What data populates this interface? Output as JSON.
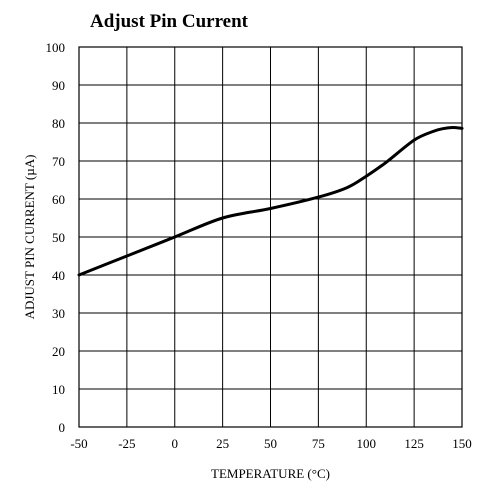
{
  "chart_data": {
    "type": "line",
    "title": "Adjust Pin Current",
    "xlabel": "TEMPERATURE (°C)",
    "ylabel": "ADJUST PIN CURRENT (µA)",
    "xlim": [
      -50,
      150
    ],
    "ylim": [
      0,
      100
    ],
    "xticks": [
      -50,
      -25,
      0,
      25,
      50,
      75,
      100,
      125,
      150
    ],
    "yticks": [
      0,
      10,
      20,
      30,
      40,
      50,
      60,
      70,
      80,
      90,
      100
    ],
    "grid": true,
    "series": [
      {
        "x": [
          -50,
          -25,
          0,
          25,
          50,
          75,
          90,
          100,
          110,
          125,
          135,
          140,
          145,
          150
        ],
        "y": [
          40,
          45,
          50,
          55,
          57.5,
          60.5,
          63,
          66,
          69.5,
          75.5,
          77.8,
          78.5,
          78.8,
          78.6
        ]
      }
    ]
  }
}
